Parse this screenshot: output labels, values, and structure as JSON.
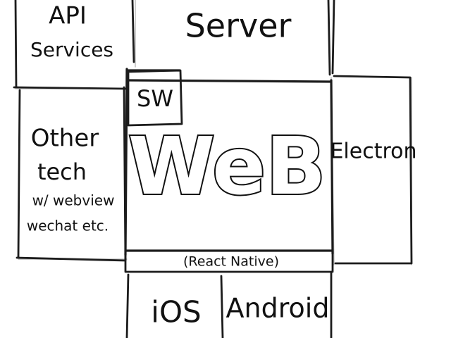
{
  "diagram": {
    "nodes": {
      "api": {
        "line1": "API",
        "line2": "Services"
      },
      "server": {
        "label": "Server"
      },
      "sw": {
        "label": "SW"
      },
      "web": {
        "label": "WeB"
      },
      "other": {
        "line1": "Other",
        "line2": "tech",
        "line3": "w/ webview",
        "line4": "wechat etc."
      },
      "electron": {
        "label": "Electron"
      },
      "react_native": {
        "label": "(React Native)"
      },
      "ios": {
        "label": "iOS"
      },
      "android": {
        "label": "Android"
      }
    }
  },
  "colors": {
    "ink": "#1c1c1c",
    "paper": "#ffffff",
    "faint": "#b8b8b8"
  }
}
